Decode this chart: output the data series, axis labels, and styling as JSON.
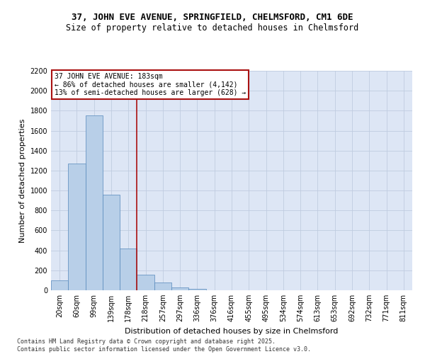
{
  "title1": "37, JOHN EVE AVENUE, SPRINGFIELD, CHELMSFORD, CM1 6DE",
  "title2": "Size of property relative to detached houses in Chelmsford",
  "xlabel": "Distribution of detached houses by size in Chelmsford",
  "ylabel": "Number of detached properties",
  "categories": [
    "20sqm",
    "60sqm",
    "99sqm",
    "139sqm",
    "178sqm",
    "218sqm",
    "257sqm",
    "297sqm",
    "336sqm",
    "376sqm",
    "416sqm",
    "455sqm",
    "495sqm",
    "534sqm",
    "574sqm",
    "613sqm",
    "653sqm",
    "692sqm",
    "732sqm",
    "771sqm",
    "811sqm"
  ],
  "values": [
    100,
    1270,
    1750,
    960,
    420,
    155,
    75,
    30,
    15,
    0,
    0,
    0,
    0,
    0,
    0,
    0,
    0,
    0,
    0,
    0,
    0
  ],
  "bar_color": "#b8cfe8",
  "bar_edge_color": "#5588bb",
  "grid_color": "#c0cce0",
  "background_color": "#dde6f5",
  "vline_color": "#aa1111",
  "annotation_text": "37 JOHN EVE AVENUE: 183sqm\n← 86% of detached houses are smaller (4,142)\n13% of semi-detached houses are larger (628) →",
  "annotation_box_color": "#aa1111",
  "ylim": [
    0,
    2200
  ],
  "yticks": [
    0,
    200,
    400,
    600,
    800,
    1000,
    1200,
    1400,
    1600,
    1800,
    2000,
    2200
  ],
  "vline_index": 4.5,
  "footnote": "Contains HM Land Registry data © Crown copyright and database right 2025.\nContains public sector information licensed under the Open Government Licence v3.0.",
  "title_fontsize": 9,
  "subtitle_fontsize": 8.5,
  "annotation_fontsize": 7,
  "axis_label_fontsize": 8,
  "tick_fontsize": 7,
  "footnote_fontsize": 6
}
